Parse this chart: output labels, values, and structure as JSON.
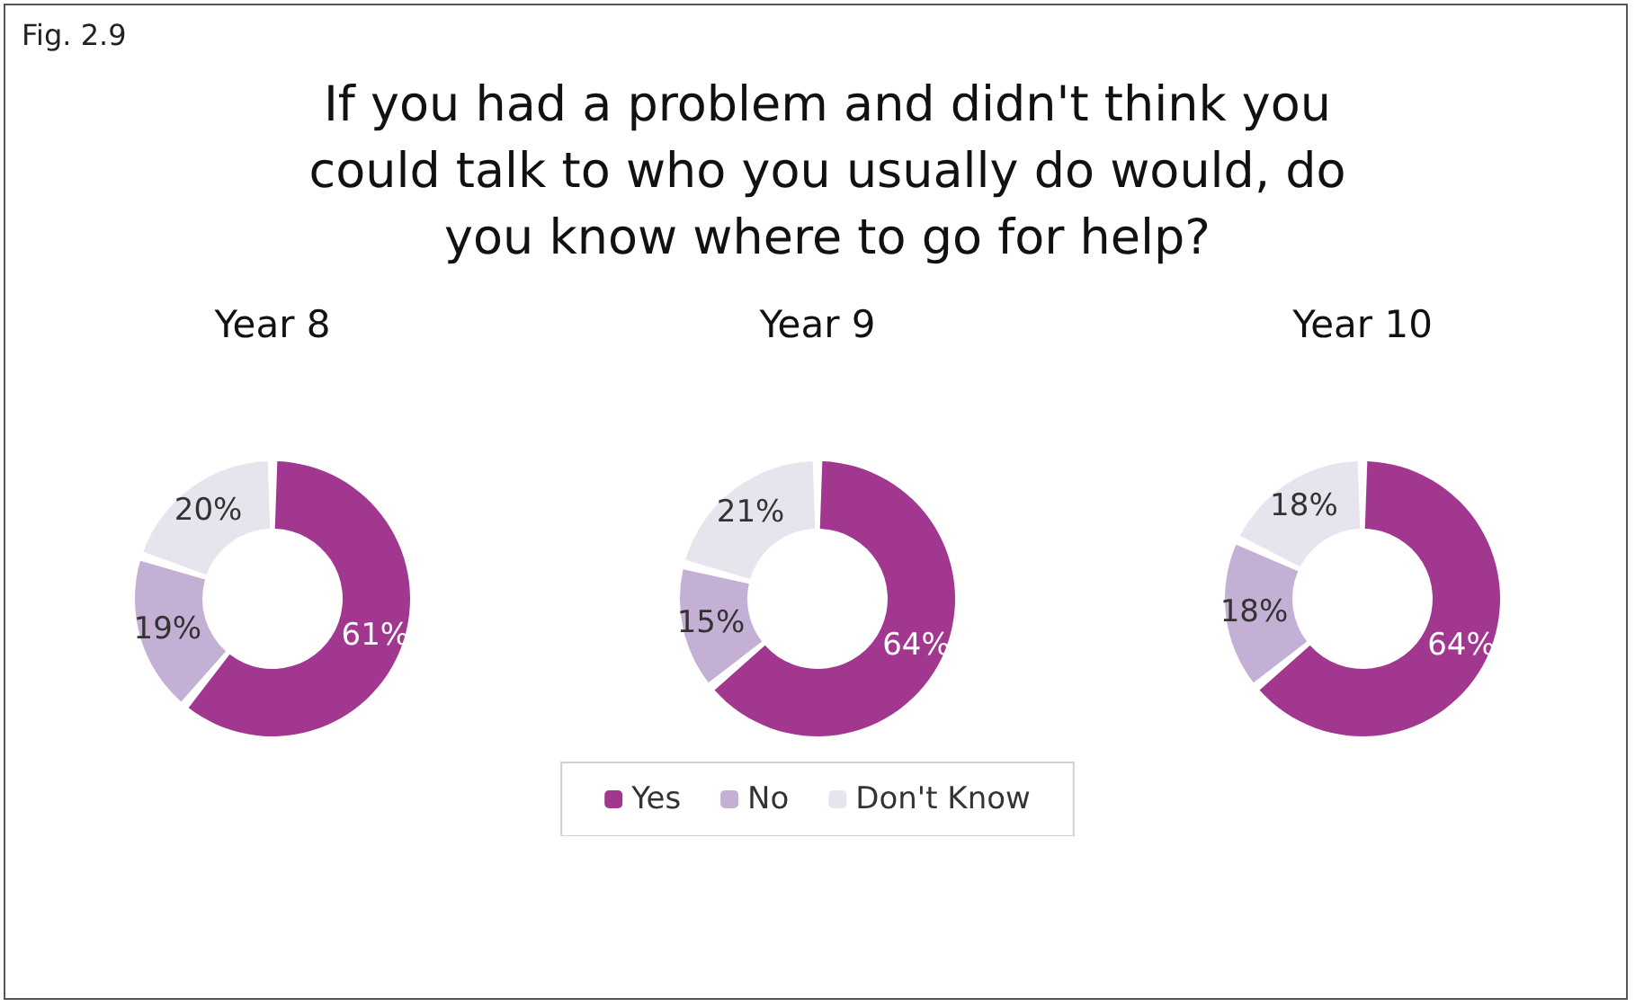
{
  "chart_data": [
    {
      "type": "donut",
      "title": "Year 8",
      "annotations": [
        "Fig. 2.9",
        "If you had a problem and didn't think you could talk to who you usually do would, do you know where to go for help?"
      ],
      "categories": [
        null,
        null,
        null
      ],
      "values": [
        61,
        19,
        20
      ],
      "value_labels": [
        "61%",
        "19%",
        "20%"
      ],
      "colors": [
        "#a2378f",
        "#c4b0d4",
        "#e8e4ee"
      ],
      "legend": false
    },
    {
      "type": "donut",
      "title": "Year 9",
      "categories": [
        "Yes",
        "No",
        "Don't Know"
      ],
      "values": [
        64,
        15,
        21
      ],
      "value_labels": [
        "64%",
        "15%",
        "21%"
      ],
      "colors": [
        "#a2378f",
        "#c4b0d4",
        "#e8e4ee"
      ],
      "legend": "bottom"
    },
    {
      "type": "donut",
      "title": "Year 10",
      "categories": [
        null,
        null,
        null
      ],
      "values": [
        64,
        18,
        18
      ],
      "value_labels": [
        "64%",
        "18%",
        "18%"
      ],
      "colors": [
        "#a2378f",
        "#c4b0d4",
        "#e8e4ee"
      ],
      "legend": false
    }
  ]
}
